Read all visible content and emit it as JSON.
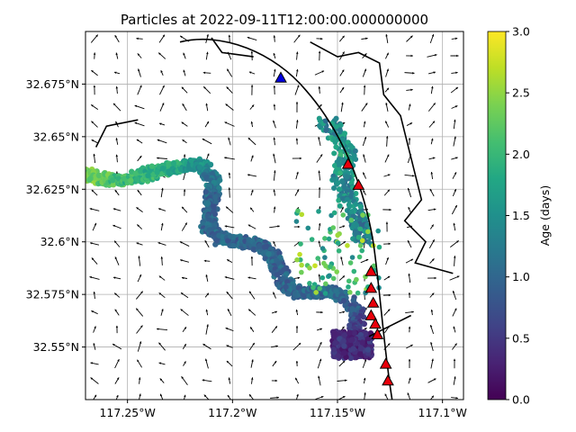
{
  "chart_data": {
    "type": "scatter",
    "title": "Particles at 2022-09-11T12:00:00.000000000",
    "xlabel": "",
    "ylabel": "",
    "x_tick_labels": [
      "117.25°W",
      "117.2°W",
      "117.15°W",
      "117.1°W"
    ],
    "x_ticks": [
      -117.25,
      -117.2,
      -117.15,
      -117.1
    ],
    "y_tick_labels": [
      "32.55°N",
      "32.575°N",
      "32.6°N",
      "32.625°N",
      "32.65°N",
      "32.675°N"
    ],
    "y_ticks": [
      32.55,
      32.575,
      32.6,
      32.625,
      32.65,
      32.675
    ],
    "xlim": [
      -117.27,
      -117.09
    ],
    "ylim": [
      32.525,
      32.7
    ],
    "grid": true,
    "colorbar": {
      "label": "Age (days)",
      "range": [
        0.0,
        3.0
      ],
      "tick_labels": [
        "0.0",
        "0.5",
        "1.0",
        "1.5",
        "2.0",
        "2.5",
        "3.0"
      ],
      "colormap": "viridis"
    },
    "release_sites_red": [
      [
        -117.145,
        32.637
      ],
      [
        -117.14,
        32.627
      ],
      [
        -117.134,
        32.586
      ],
      [
        -117.134,
        32.578
      ],
      [
        -117.133,
        32.571
      ],
      [
        -117.134,
        32.565
      ],
      [
        -117.132,
        32.561
      ],
      [
        -117.131,
        32.556
      ],
      [
        -117.127,
        32.542
      ],
      [
        -117.126,
        32.534
      ]
    ],
    "release_sites_blue": [
      [
        -117.177,
        32.678
      ]
    ],
    "particle_path": [
      {
        "x": -117.27,
        "y": 32.632,
        "age": 2.5
      },
      {
        "x": -117.262,
        "y": 32.63,
        "age": 2.3
      },
      {
        "x": -117.255,
        "y": 32.629,
        "age": 2.1
      },
      {
        "x": -117.245,
        "y": 32.631,
        "age": 2.0
      },
      {
        "x": -117.235,
        "y": 32.634,
        "age": 1.9
      },
      {
        "x": -117.225,
        "y": 32.636,
        "age": 1.8
      },
      {
        "x": -117.215,
        "y": 32.637,
        "age": 1.5
      },
      {
        "x": -117.209,
        "y": 32.63,
        "age": 1.2
      },
      {
        "x": -117.21,
        "y": 32.62,
        "age": 1.0
      },
      {
        "x": -117.212,
        "y": 32.608,
        "age": 1.0
      },
      {
        "x": -117.205,
        "y": 32.601,
        "age": 1.0
      },
      {
        "x": -117.195,
        "y": 32.6,
        "age": 1.0
      },
      {
        "x": -117.186,
        "y": 32.598,
        "age": 1.0
      },
      {
        "x": -117.18,
        "y": 32.592,
        "age": 1.0
      },
      {
        "x": -117.176,
        "y": 32.582,
        "age": 1.0
      },
      {
        "x": -117.17,
        "y": 32.576,
        "age": 1.0
      },
      {
        "x": -117.16,
        "y": 32.576,
        "age": 1.0
      },
      {
        "x": -117.15,
        "y": 32.576,
        "age": 1.0
      },
      {
        "x": -117.14,
        "y": 32.566,
        "age": 0.8
      },
      {
        "x": -117.142,
        "y": 32.553,
        "age": 0.5
      },
      {
        "x": -117.138,
        "y": 32.549,
        "age": 0.4
      }
    ],
    "particle_cluster_north": [
      {
        "x": -117.155,
        "y": 32.658,
        "age": 1.4
      },
      {
        "x": -117.15,
        "y": 32.65,
        "age": 1.5
      },
      {
        "x": -117.145,
        "y": 32.64,
        "age": 1.6
      },
      {
        "x": -117.148,
        "y": 32.63,
        "age": 1.5
      },
      {
        "x": -117.145,
        "y": 32.62,
        "age": 1.4
      },
      {
        "x": -117.14,
        "y": 32.61,
        "age": 1.3
      },
      {
        "x": -117.138,
        "y": 32.6,
        "age": 1.2
      }
    ]
  }
}
